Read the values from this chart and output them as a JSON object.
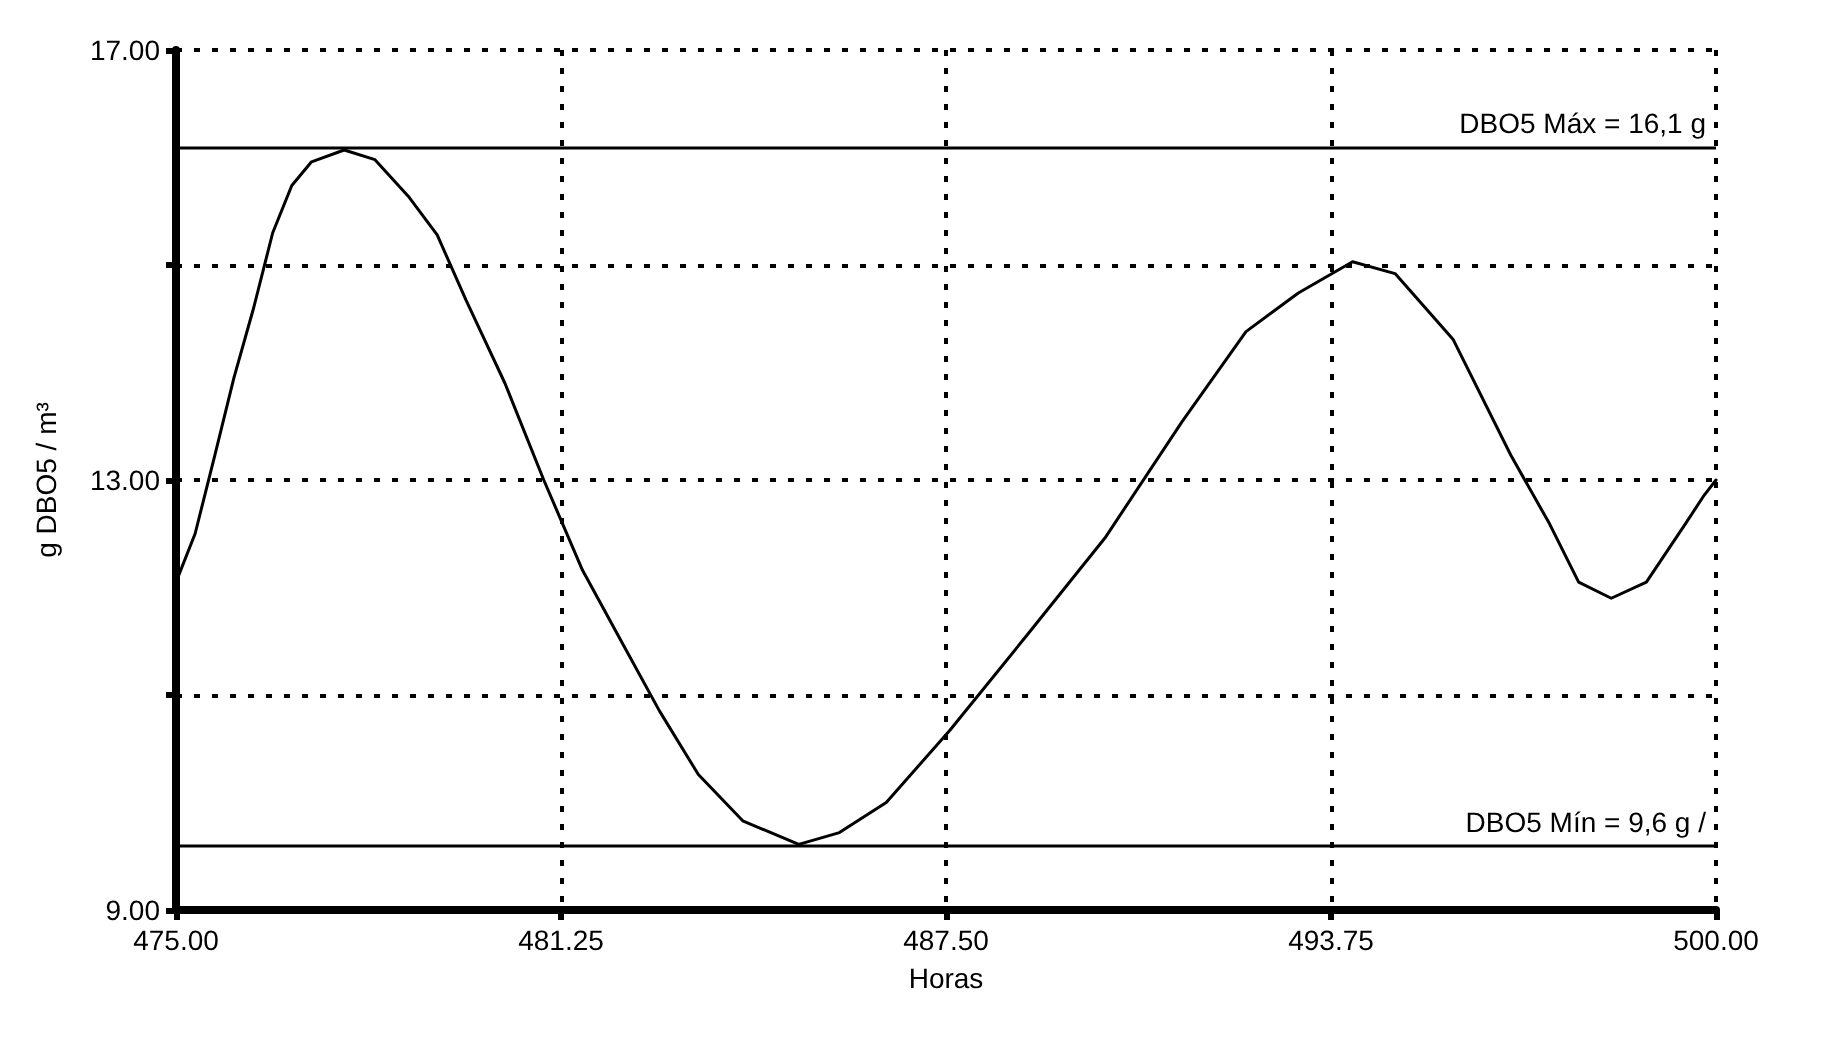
{
  "chart_data": {
    "type": "line",
    "xlabel": "Horas",
    "ylabel": "g DBO5 / m³",
    "xlim": [
      475,
      500
    ],
    "ylim": [
      9,
      17
    ],
    "xticks": [
      {
        "value": 475,
        "label": "475.00"
      },
      {
        "value": 481.25,
        "label": "481.25"
      },
      {
        "value": 487.5,
        "label": "487.50"
      },
      {
        "value": 493.75,
        "label": "493.75"
      },
      {
        "value": 500,
        "label": "500.00"
      }
    ],
    "yticks": [
      {
        "value": 9,
        "label": "9.00"
      },
      {
        "value": 11,
        "label": null
      },
      {
        "value": 13,
        "label": "13.00"
      },
      {
        "value": 15,
        "label": null
      },
      {
        "value": 17,
        "label": "17.00"
      }
    ],
    "grid": true,
    "marker": "none",
    "line_style": "solid",
    "x": [
      475,
      475.31,
      475.63,
      475.94,
      476.26,
      476.57,
      476.88,
      477.2,
      477.73,
      478.23,
      478.77,
      479.24,
      479.71,
      480.34,
      480.97,
      481.6,
      482.22,
      482.85,
      483.48,
      484.2,
      485.11,
      485.77,
      486.53,
      487.56,
      488.82,
      490.08,
      491.33,
      492.37,
      493.22,
      494.1,
      494.79,
      495.73,
      496.67,
      497.3,
      497.77,
      498.3,
      498.87,
      499.5,
      499.81,
      500
    ],
    "series": [
      {
        "color": "#000000",
        "values": [
          12.05,
          12.5,
          13.23,
          13.95,
          14.6,
          15.3,
          15.74,
          15.96,
          16.07,
          15.98,
          15.64,
          15.28,
          14.67,
          13.9,
          13.0,
          12.16,
          11.51,
          10.85,
          10.26,
          9.83,
          9.61,
          9.72,
          10.0,
          10.67,
          11.56,
          12.46,
          13.54,
          14.38,
          14.74,
          15.03,
          14.92,
          14.31,
          13.23,
          12.59,
          12.05,
          11.9,
          12.05,
          12.59,
          12.86,
          13.0
        ]
      }
    ],
    "ref_lines": [
      {
        "axis": "y",
        "value": 16.1,
        "label": "DBO5 Máx = 16,1 g",
        "color": "#000000"
      },
      {
        "axis": "y",
        "value": 9.6,
        "label": "DBO5 Mín = 9,6 g /",
        "color": "#000000"
      }
    ]
  }
}
